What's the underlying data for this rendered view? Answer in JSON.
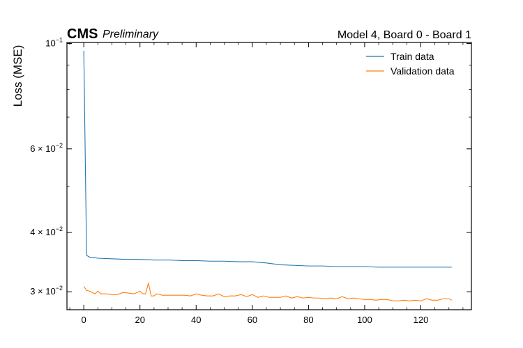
{
  "chart_data": {
    "type": "line",
    "experiment_label": "CMS",
    "status_label": "Preliminary",
    "title": "Model 4, Board 0 - Board 1",
    "xlabel": "",
    "ylabel": "Loss (MSE)",
    "xlim": [
      -6,
      138
    ],
    "ylim": [
      0.0275,
      0.1005
    ],
    "yscale": "log",
    "xticks": [
      0,
      20,
      40,
      60,
      80,
      100,
      120
    ],
    "xtick_labels": [
      "0",
      "20",
      "40",
      "60",
      "80",
      "100",
      "120"
    ],
    "yticks": [
      {
        "value": 0.1,
        "mantissa": "",
        "exponent": "−1"
      },
      {
        "value": 0.06,
        "mantissa": "6",
        "exponent": "−2"
      },
      {
        "value": 0.04,
        "mantissa": "4",
        "exponent": "−2"
      },
      {
        "value": 0.03,
        "mantissa": "3",
        "exponent": "−2"
      }
    ],
    "legend_position": "top-right",
    "grid": false,
    "series": [
      {
        "name": "Train data",
        "color": "#1f77b4",
        "x": [
          0,
          1,
          2,
          3,
          4,
          5,
          10,
          15,
          20,
          25,
          30,
          35,
          40,
          45,
          50,
          55,
          60,
          65,
          70,
          75,
          80,
          85,
          90,
          95,
          100,
          105,
          110,
          115,
          120,
          125,
          131
        ],
        "values": [
          0.0965,
          0.0358,
          0.0355,
          0.0354,
          0.0354,
          0.0353,
          0.0352,
          0.0351,
          0.0351,
          0.035,
          0.035,
          0.0349,
          0.0349,
          0.0348,
          0.0348,
          0.0347,
          0.0347,
          0.0345,
          0.0342,
          0.0341,
          0.034,
          0.034,
          0.0339,
          0.0339,
          0.0339,
          0.0338,
          0.0338,
          0.0338,
          0.0338,
          0.0338,
          0.0338
        ]
      },
      {
        "name": "Validation data",
        "color": "#ff7f0e",
        "x": [
          0,
          1,
          2,
          3,
          4,
          5,
          6,
          8,
          10,
          12,
          14,
          16,
          18,
          20,
          21,
          22,
          23,
          24,
          25,
          26,
          28,
          30,
          32,
          34,
          36,
          38,
          40,
          42,
          44,
          46,
          48,
          50,
          52,
          54,
          56,
          58,
          60,
          62,
          64,
          66,
          68,
          70,
          72,
          74,
          76,
          78,
          80,
          82,
          84,
          86,
          88,
          90,
          92,
          94,
          96,
          98,
          100,
          102,
          104,
          106,
          108,
          110,
          112,
          114,
          116,
          118,
          120,
          122,
          124,
          126,
          128,
          130,
          131
        ],
        "values": [
          0.0308,
          0.0302,
          0.0301,
          0.0299,
          0.0297,
          0.0301,
          0.0297,
          0.0297,
          0.0296,
          0.0296,
          0.0299,
          0.0298,
          0.0297,
          0.0301,
          0.0297,
          0.0297,
          0.0313,
          0.0294,
          0.0294,
          0.0297,
          0.0295,
          0.0295,
          0.0295,
          0.0295,
          0.0295,
          0.0294,
          0.0297,
          0.0295,
          0.0294,
          0.0294,
          0.0297,
          0.0293,
          0.0294,
          0.0294,
          0.0296,
          0.0293,
          0.0296,
          0.0292,
          0.0294,
          0.0292,
          0.0292,
          0.0292,
          0.0294,
          0.0291,
          0.0293,
          0.0291,
          0.0292,
          0.0291,
          0.0291,
          0.029,
          0.0291,
          0.029,
          0.0293,
          0.029,
          0.0291,
          0.029,
          0.0289,
          0.0289,
          0.0288,
          0.0289,
          0.0289,
          0.0287,
          0.0287,
          0.0288,
          0.0287,
          0.0288,
          0.0287,
          0.029,
          0.0288,
          0.0288,
          0.029,
          0.029,
          0.0288
        ]
      }
    ]
  }
}
